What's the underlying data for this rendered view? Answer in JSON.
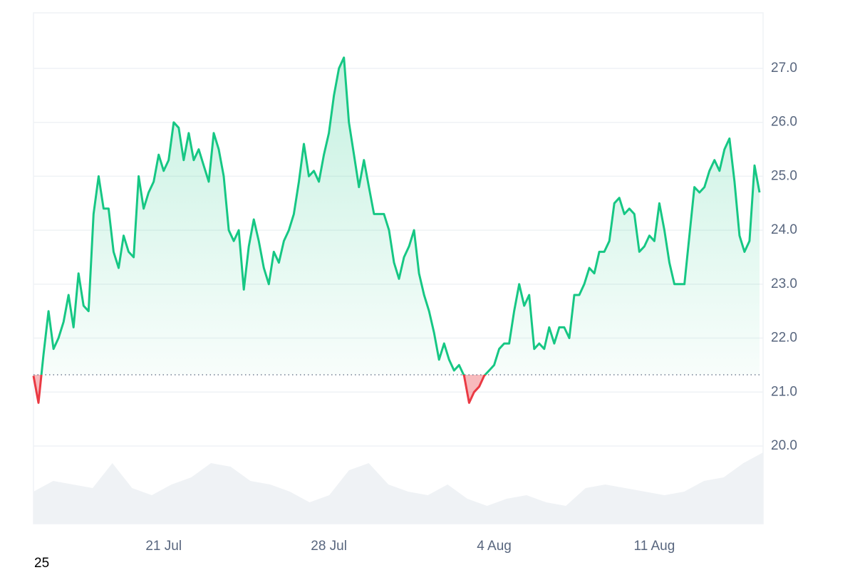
{
  "chart_data": {
    "type": "line",
    "categories": [
      null,
      null,
      null,
      null,
      null,
      null,
      null,
      null,
      null,
      null,
      null,
      null,
      null,
      null,
      null,
      null,
      null,
      null,
      null,
      null,
      null,
      null,
      null,
      null,
      null,
      null,
      "21 Jul",
      null,
      null,
      null,
      null,
      null,
      null,
      null,
      null,
      null,
      null,
      null,
      null,
      null,
      null,
      null,
      null,
      null,
      null,
      null,
      null,
      null,
      null,
      null,
      null,
      null,
      null,
      null,
      null,
      null,
      null,
      null,
      null,
      "28 Jul",
      null,
      null,
      null,
      null,
      null,
      null,
      null,
      null,
      null,
      null,
      null,
      null,
      null,
      null,
      null,
      null,
      null,
      null,
      null,
      null,
      null,
      null,
      null,
      null,
      null,
      null,
      null,
      null,
      null,
      null,
      null,
      null,
      "4 Aug",
      null,
      null,
      null,
      null,
      null,
      null,
      null,
      null,
      null,
      null,
      null,
      null,
      null,
      null,
      null,
      null,
      null,
      null,
      null,
      null,
      null,
      null,
      null,
      null,
      null,
      null,
      null,
      null,
      null,
      null,
      null,
      "11 Aug",
      null,
      null,
      null,
      null,
      null,
      null,
      null,
      null,
      null,
      null,
      null,
      null,
      null,
      null,
      null,
      null,
      null,
      null,
      null,
      null,
      null
    ],
    "series": [
      {
        "color": "#16c784",
        "below_color": "#ea3943",
        "values": [
          21.3,
          20.8,
          21.7,
          22.5,
          21.8,
          22.0,
          22.3,
          22.8,
          22.2,
          23.2,
          22.6,
          22.5,
          24.3,
          25.0,
          24.4,
          24.4,
          23.6,
          23.3,
          23.9,
          23.6,
          23.5,
          25.0,
          24.4,
          24.7,
          24.9,
          25.4,
          25.1,
          25.3,
          26.0,
          25.9,
          25.3,
          25.8,
          25.3,
          25.5,
          25.2,
          24.9,
          25.8,
          25.5,
          25.0,
          24.0,
          23.8,
          24.0,
          22.9,
          23.7,
          24.2,
          23.8,
          23.3,
          23.0,
          23.6,
          23.4,
          23.8,
          24.0,
          24.3,
          24.9,
          25.6,
          25.0,
          25.1,
          24.9,
          25.4,
          25.8,
          26.5,
          27.0,
          27.2,
          26.0,
          25.4,
          24.8,
          25.3,
          24.8,
          24.3,
          24.3,
          24.3,
          24.0,
          23.4,
          23.1,
          23.5,
          23.7,
          24.0,
          23.2,
          22.8,
          22.5,
          22.1,
          21.6,
          21.9,
          21.6,
          21.4,
          21.5,
          21.3,
          20.8,
          21.0,
          21.1,
          21.3,
          21.4,
          21.5,
          21.8,
          21.9,
          21.9,
          22.5,
          23.0,
          22.6,
          22.8,
          21.8,
          21.9,
          21.8,
          22.2,
          21.9,
          22.2,
          22.2,
          22.0,
          22.8,
          22.8,
          23.0,
          23.3,
          23.2,
          23.6,
          23.6,
          23.8,
          24.5,
          24.6,
          24.3,
          24.4,
          24.3,
          23.6,
          23.7,
          23.9,
          23.8,
          24.5,
          24.0,
          23.4,
          23.0,
          23.0,
          23.0,
          23.9,
          24.8,
          24.7,
          24.8,
          25.1,
          25.3,
          25.1,
          25.5,
          25.7,
          24.9,
          23.9,
          23.6,
          23.8,
          25.2,
          24.7
        ]
      }
    ],
    "baseline": 21.32,
    "volume": {
      "color": "#eff2f5",
      "ylim": [
        0,
        100
      ],
      "values": [
        45,
        60,
        55,
        50,
        85,
        50,
        40,
        55,
        65,
        85,
        80,
        60,
        55,
        45,
        30,
        40,
        75,
        85,
        55,
        45,
        40,
        55,
        35,
        25,
        35,
        40,
        30,
        25,
        50,
        55,
        50,
        45,
        40,
        45,
        60,
        65,
        85,
        100
      ]
    },
    "ylim": [
      18.56,
      28.03
    ],
    "yticks": [
      {
        "value": 20,
        "label": "20.0"
      },
      {
        "value": 21,
        "label": "21.0"
      },
      {
        "value": 22,
        "label": "22.0"
      },
      {
        "value": 23,
        "label": "23.0"
      },
      {
        "value": 24,
        "label": "24.0"
      },
      {
        "value": 25,
        "label": "25.0"
      },
      {
        "value": 26,
        "label": "26.0"
      },
      {
        "value": 27,
        "label": "27.0"
      }
    ],
    "grid": true,
    "footer_text": "25"
  }
}
